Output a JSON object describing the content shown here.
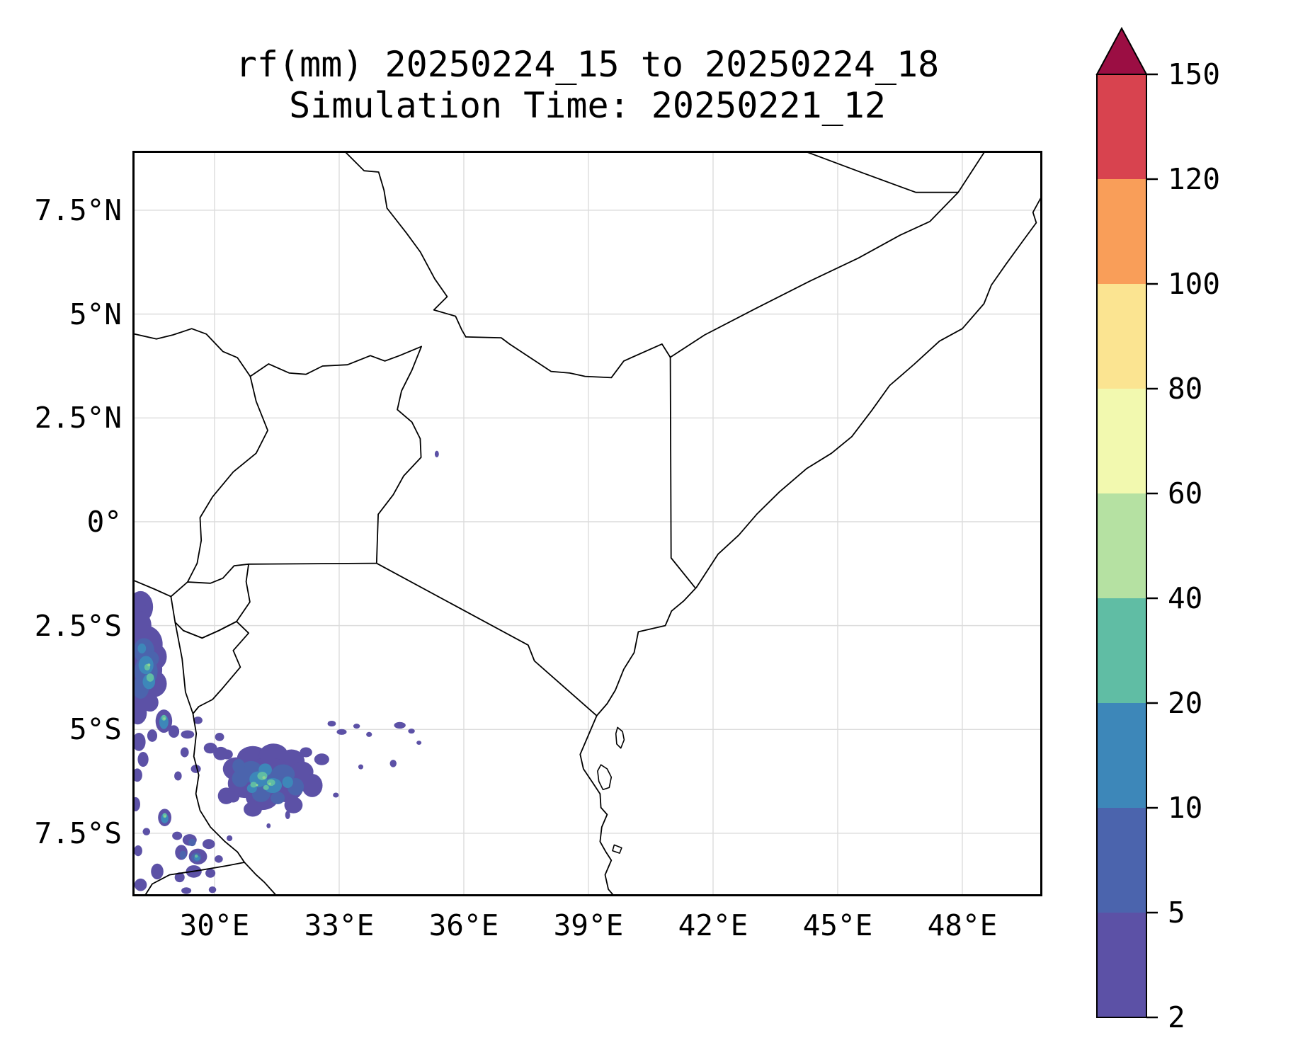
{
  "title": {
    "line1": "rf(mm) 20250224_15 to 20250224_18",
    "line2": "Simulation Time: 20250221_12"
  },
  "axes": {
    "x_ticks": [
      {
        "label": "30°E",
        "lon": 30
      },
      {
        "label": "33°E",
        "lon": 33
      },
      {
        "label": "36°E",
        "lon": 36
      },
      {
        "label": "39°E",
        "lon": 39
      },
      {
        "label": "42°E",
        "lon": 42
      },
      {
        "label": "45°E",
        "lon": 45
      },
      {
        "label": "48°E",
        "lon": 48
      }
    ],
    "y_ticks": [
      {
        "label": "7.5°N",
        "lat": 7.5
      },
      {
        "label": "5°N",
        "lat": 5
      },
      {
        "label": "2.5°N",
        "lat": 2.5
      },
      {
        "label": "0°",
        "lat": 0
      },
      {
        "label": "2.5°S",
        "lat": -2.5
      },
      {
        "label": "5°S",
        "lat": -5
      },
      {
        "label": "7.5°S",
        "lat": -7.5
      }
    ]
  },
  "colorbar": {
    "tick_labels": [
      "2",
      "5",
      "10",
      "20",
      "40",
      "60",
      "80",
      "100",
      "120",
      "150"
    ],
    "levels": [
      2,
      5,
      10,
      20,
      40,
      60,
      80,
      100,
      120,
      150
    ],
    "segment_colors": [
      "#5c51a6",
      "#4b64ad",
      "#3d87b9",
      "#60bda4",
      "#b5e1a2",
      "#f2f9af",
      "#fbe491",
      "#f99e59",
      "#d8434f"
    ],
    "over_color": "#9b0e43",
    "outline_color": "#000000"
  },
  "chart_data": {
    "type": "heatmap",
    "title": "rf(mm) 20250224_15 to 20250224_18",
    "subtitle": "Simulation Time: 20250221_12",
    "variable": "rf(mm)",
    "valid_period": "20250224_15 to 20250224_18",
    "simulation_time": "20250221_12",
    "lon_range_deg_e": [
      28.07,
      49.88
    ],
    "lat_range_deg_n": [
      -8.97,
      8.88
    ],
    "grid": true,
    "legend_position": "right-colorbar",
    "colorbar_levels_mm": [
      2,
      5,
      10,
      20,
      40,
      60,
      80,
      100,
      120,
      150
    ],
    "colorbar_extend": "max",
    "band_colors": {
      "2-5": "#5c51a6",
      "5-10": "#4b64ad",
      "10-20": "#3d87b9",
      "20-40": "#60bda4",
      "40-60": "#8fd394"
    },
    "rain_cells": [
      [
        "2-5",
        28.22,
        -2.05,
        0.3,
        0.38
      ],
      [
        "2-5",
        28.2,
        -2.5,
        0.28,
        0.35
      ],
      [
        "2-5",
        28.35,
        -2.95,
        0.4,
        0.45
      ],
      [
        "2-5",
        28.6,
        -3.25,
        0.25,
        0.3
      ],
      [
        "2-5",
        28.32,
        -3.55,
        0.42,
        0.55
      ],
      [
        "2-5",
        28.55,
        -3.9,
        0.3,
        0.32
      ],
      [
        "2-5",
        28.2,
        -4.15,
        0.3,
        0.38
      ],
      [
        "2-5",
        28.15,
        -4.6,
        0.22,
        0.28
      ],
      [
        "2-5",
        28.45,
        -4.35,
        0.2,
        0.22
      ],
      [
        "2-5",
        28.32,
        -1.8,
        0.09,
        0.07
      ],
      [
        "2-5",
        28.3,
        -2.07,
        0.06,
        0.06
      ],
      [
        "5-10",
        28.3,
        -3.1,
        0.25,
        0.3
      ],
      [
        "5-10",
        28.35,
        -3.6,
        0.28,
        0.36
      ],
      [
        "5-10",
        28.22,
        -4.0,
        0.2,
        0.26
      ],
      [
        "5-10",
        28.5,
        -3.3,
        0.16,
        0.18
      ],
      [
        "10-20",
        28.35,
        -3.45,
        0.18,
        0.22
      ],
      [
        "10-20",
        28.42,
        -3.85,
        0.15,
        0.18
      ],
      [
        "10-20",
        28.25,
        -3.05,
        0.1,
        0.12
      ],
      [
        "20-40",
        28.45,
        -3.75,
        0.09,
        0.1
      ],
      [
        "20-40",
        28.38,
        -3.5,
        0.07,
        0.08
      ],
      [
        "40-60",
        28.42,
        -3.45,
        0.035,
        0.035
      ],
      [
        "2-5",
        28.78,
        -4.8,
        0.2,
        0.28
      ],
      [
        "2-5",
        29.02,
        -5.05,
        0.13,
        0.15
      ],
      [
        "2-5",
        28.5,
        -5.15,
        0.12,
        0.15
      ],
      [
        "2-5",
        28.18,
        -5.3,
        0.16,
        0.22
      ],
      [
        "2-5",
        28.28,
        -5.72,
        0.13,
        0.18
      ],
      [
        "2-5",
        28.14,
        -6.1,
        0.12,
        0.16
      ],
      [
        "2-5",
        29.35,
        -5.12,
        0.16,
        0.1
      ],
      [
        "2-5",
        29.6,
        -4.78,
        0.11,
        0.09
      ],
      [
        "2-5",
        29.28,
        -5.55,
        0.1,
        0.12
      ],
      [
        "2-5",
        29.55,
        -5.95,
        0.12,
        0.1
      ],
      [
        "2-5",
        29.12,
        -6.12,
        0.09,
        0.11
      ],
      [
        "2-5",
        29.9,
        -5.45,
        0.16,
        0.13
      ],
      [
        "2-5",
        30.12,
        -5.18,
        0.11,
        0.1
      ],
      [
        "2-5",
        30.3,
        -5.6,
        0.14,
        0.12
      ],
      [
        "10-20",
        28.78,
        -4.82,
        0.11,
        0.17
      ],
      [
        "20-40",
        28.78,
        -4.72,
        0.06,
        0.07
      ],
      [
        "40-60",
        28.79,
        -4.74,
        0.03,
        0.03
      ],
      [
        "2-5",
        30.52,
        -5.95,
        0.32,
        0.28
      ],
      [
        "2-5",
        30.92,
        -5.7,
        0.38,
        0.3
      ],
      [
        "2-5",
        31.42,
        -5.62,
        0.35,
        0.28
      ],
      [
        "2-5",
        31.85,
        -5.78,
        0.32,
        0.3
      ],
      [
        "2-5",
        31.3,
        -6.1,
        0.6,
        0.42
      ],
      [
        "2-5",
        30.72,
        -6.3,
        0.4,
        0.35
      ],
      [
        "2-5",
        31.7,
        -6.35,
        0.45,
        0.4
      ],
      [
        "2-5",
        31.15,
        -6.62,
        0.4,
        0.32
      ],
      [
        "2-5",
        32.1,
        -6.02,
        0.28,
        0.25
      ],
      [
        "2-5",
        32.35,
        -6.35,
        0.25,
        0.28
      ],
      [
        "2-5",
        30.28,
        -6.6,
        0.2,
        0.2
      ],
      [
        "2-5",
        30.92,
        -6.92,
        0.22,
        0.18
      ],
      [
        "2-5",
        31.9,
        -6.82,
        0.22,
        0.2
      ],
      [
        "2-5",
        30.15,
        -5.58,
        0.18,
        0.16
      ],
      [
        "2-5",
        32.58,
        -5.72,
        0.18,
        0.14
      ],
      [
        "2-5",
        32.2,
        -5.55,
        0.15,
        0.12
      ],
      [
        "2-5",
        30.45,
        -6.62,
        0.15,
        0.14
      ],
      [
        "5-10",
        30.88,
        -6.02,
        0.28,
        0.26
      ],
      [
        "5-10",
        31.28,
        -6.25,
        0.35,
        0.3
      ],
      [
        "5-10",
        31.65,
        -6.08,
        0.28,
        0.24
      ],
      [
        "5-10",
        31.12,
        -6.55,
        0.22,
        0.2
      ],
      [
        "5-10",
        30.62,
        -6.18,
        0.2,
        0.21
      ],
      [
        "5-10",
        31.95,
        -6.38,
        0.2,
        0.21
      ],
      [
        "5-10",
        31.52,
        -6.65,
        0.17,
        0.15
      ],
      [
        "5-10",
        30.58,
        -5.88,
        0.15,
        0.17
      ],
      [
        "10-20",
        31.05,
        -6.2,
        0.21,
        0.19
      ],
      [
        "10-20",
        31.4,
        -6.35,
        0.22,
        0.18
      ],
      [
        "10-20",
        31.22,
        -5.97,
        0.16,
        0.15
      ],
      [
        "10-20",
        31.76,
        -6.27,
        0.13,
        0.14
      ],
      [
        "10-20",
        30.9,
        -6.42,
        0.12,
        0.11
      ],
      [
        "20-40",
        31.15,
        -6.12,
        0.12,
        0.1
      ],
      [
        "20-40",
        31.36,
        -6.28,
        0.1,
        0.08
      ],
      [
        "20-40",
        30.94,
        -6.33,
        0.08,
        0.07
      ],
      [
        "20-40",
        31.24,
        -6.4,
        0.07,
        0.06
      ],
      [
        "40-60",
        31.19,
        -6.16,
        0.04,
        0.035
      ],
      [
        "40-60",
        31.33,
        -6.31,
        0.032,
        0.03
      ],
      [
        "40-60",
        31.02,
        -6.34,
        0.028,
        0.028
      ],
      [
        "2-5",
        32.82,
        -4.86,
        0.1,
        0.07
      ],
      [
        "2-5",
        33.06,
        -5.06,
        0.12,
        0.07
      ],
      [
        "2-5",
        33.42,
        -4.92,
        0.08,
        0.06
      ],
      [
        "2-5",
        33.72,
        -5.12,
        0.07,
        0.06
      ],
      [
        "2-5",
        34.46,
        -4.9,
        0.14,
        0.08
      ],
      [
        "2-5",
        34.74,
        -5.04,
        0.08,
        0.06
      ],
      [
        "2-5",
        34.3,
        -5.82,
        0.08,
        0.09
      ],
      [
        "2-5",
        33.52,
        -5.9,
        0.06,
        0.06
      ],
      [
        "2-5",
        32.92,
        -6.58,
        0.07,
        0.06
      ],
      [
        "2-5",
        34.92,
        -5.32,
        0.06,
        0.05
      ],
      [
        "2-5",
        28.8,
        -7.12,
        0.16,
        0.21
      ],
      [
        "10-20",
        28.8,
        -7.14,
        0.09,
        0.12
      ],
      [
        "20-40",
        28.8,
        -7.07,
        0.05,
        0.06
      ],
      [
        "40-60",
        28.81,
        -7.09,
        0.027,
        0.027
      ],
      [
        "2-5",
        28.1,
        -6.8,
        0.11,
        0.17
      ],
      [
        "2-5",
        28.36,
        -7.46,
        0.09,
        0.09
      ],
      [
        "2-5",
        28.16,
        -7.92,
        0.1,
        0.13
      ],
      [
        "2-5",
        29.1,
        -7.56,
        0.12,
        0.1
      ],
      [
        "2-5",
        29.4,
        -7.66,
        0.17,
        0.14
      ],
      [
        "2-5",
        29.2,
        -7.96,
        0.15,
        0.18
      ],
      [
        "2-5",
        29.6,
        -8.06,
        0.22,
        0.19
      ],
      [
        "2-5",
        29.86,
        -7.76,
        0.15,
        0.12
      ],
      [
        "2-5",
        29.5,
        -8.42,
        0.19,
        0.15
      ],
      [
        "2-5",
        29.16,
        -8.56,
        0.12,
        0.12
      ],
      [
        "2-5",
        29.9,
        -8.46,
        0.12,
        0.11
      ],
      [
        "2-5",
        30.1,
        -8.12,
        0.1,
        0.09
      ],
      [
        "2-5",
        28.62,
        -8.42,
        0.15,
        0.19
      ],
      [
        "2-5",
        28.22,
        -8.74,
        0.15,
        0.15
      ],
      [
        "2-5",
        29.95,
        -8.86,
        0.09,
        0.08
      ],
      [
        "2-5",
        29.32,
        -8.88,
        0.12,
        0.08
      ],
      [
        "2-5",
        30.36,
        -7.62,
        0.07,
        0.07
      ],
      [
        "2-5",
        31.3,
        -7.32,
        0.05,
        0.06
      ],
      [
        "2-5",
        31.76,
        -7.06,
        0.06,
        0.1
      ],
      [
        "5-10",
        29.56,
        -8.08,
        0.12,
        0.11
      ],
      [
        "5-10",
        29.46,
        -7.72,
        0.09,
        0.09
      ],
      [
        "5-10",
        29.24,
        -8.02,
        0.08,
        0.1
      ],
      [
        "10-20",
        29.58,
        -8.1,
        0.07,
        0.06
      ],
      [
        "20-40",
        29.56,
        -8.05,
        0.04,
        0.04
      ],
      [
        "2-5",
        35.35,
        1.63,
        0.05,
        0.08
      ]
    ]
  }
}
